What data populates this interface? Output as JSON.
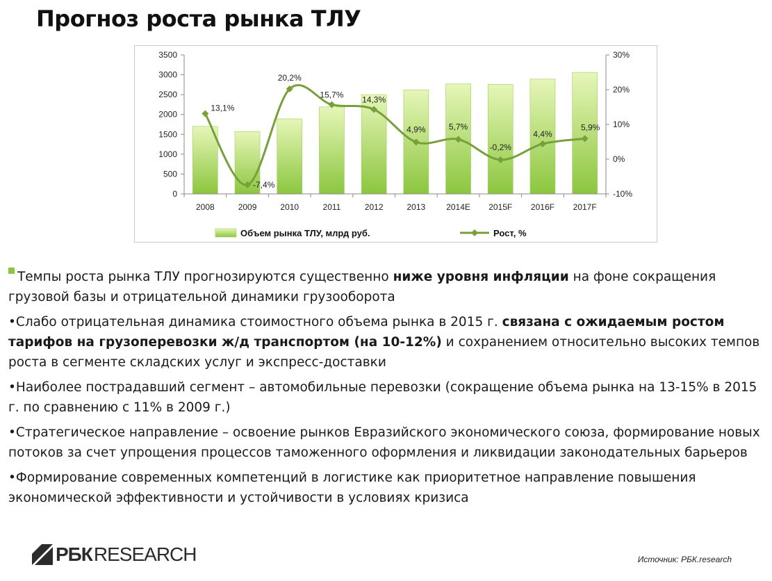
{
  "page": {
    "title": "Прогноз роста рынка ТЛУ",
    "source": "Источник: РБК.research"
  },
  "colors": {
    "bar_fill_light": "#e6f6b8",
    "bar_fill_dark": "#8cc63f",
    "line": "#78a03a",
    "bullet": "#8cc63f"
  },
  "chart_data": {
    "type": "bar",
    "categories": [
      "2008",
      "2009",
      "2010",
      "2011",
      "2012",
      "2013",
      "2014E",
      "2015F",
      "2016F",
      "2017F"
    ],
    "series": [
      {
        "name": "Объем рынка ТЛУ, млрд руб.",
        "type": "bar",
        "axis": "left",
        "values": [
          1700,
          1570,
          1890,
          2190,
          2500,
          2620,
          2770,
          2760,
          2890,
          3060
        ]
      },
      {
        "name": "Рост, %",
        "type": "line",
        "axis": "right",
        "values": [
          13.1,
          -7.4,
          20.2,
          15.7,
          14.3,
          4.9,
          5.7,
          -0.2,
          4.4,
          5.9
        ],
        "labels": [
          "13,1%",
          "-7,4%",
          "20,2%",
          "15,7%",
          "14,3%",
          "4,9%",
          "5,7%",
          "-0,2%",
          "4,4%",
          "5,9%"
        ]
      }
    ],
    "y_left": {
      "min": 0,
      "max": 3500,
      "ticks": [
        "0",
        "500",
        "1000",
        "1500",
        "2000",
        "2500",
        "3000",
        "3500"
      ]
    },
    "y_right": {
      "min": -10,
      "max": 30,
      "ticks": [
        "-10%",
        "0%",
        "10%",
        "20%",
        "30%"
      ]
    },
    "grid": false,
    "legend_position": "bottom"
  },
  "text": {
    "bullet1": {
      "a": "Темпы роста рынка ТЛУ прогнозируются существенно ",
      "b": "ниже уровня инфляции",
      "c": " на фоне сокращения грузовой базы и отрицательной динамики грузооборота"
    },
    "bullet2": {
      "a": "•Слабо отрицательная динамика стоимостного объема рынка в 2015 г. ",
      "b": "связана с ожидаемым ростом тарифов на грузоперевозки ж/д транспортом (на 10-12%)",
      "c": " и сохранением относительно высоких темпов роста в сегменте складских услуг и экспресс-доставки"
    },
    "bullet3": "•Наиболее пострадавший сегмент – автомобильные перевозки (сокращение объема рынка на 13-15% в 2015 г. по сравнению с 11% в 2009 г.)",
    "bullet4": "•Стратегическое направление – освоение рынков Евразийского экономического союза, формирование новых потоков за счет упрощения процессов таможенного оформления и ликвидации законодательных барьеров",
    "bullet5": "•Формирование современных компетенций в логистике как приоритетное направление повышения экономической эффективности и устойчивости в условиях кризиса"
  },
  "logo": {
    "main": "РБК",
    "sub": "RESEARCH"
  }
}
